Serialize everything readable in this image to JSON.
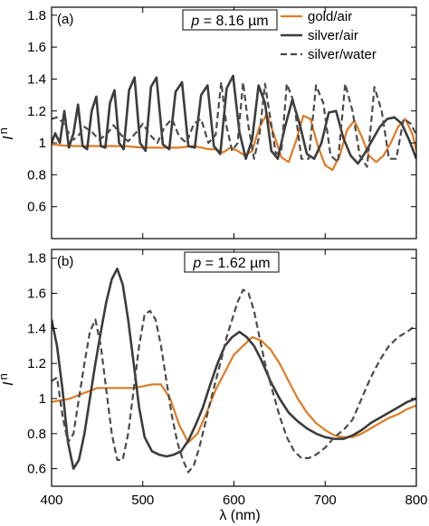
{
  "figure": {
    "xlabel": "λ (nm)",
    "ylabel_main": "I",
    "ylabel_sub": "n"
  },
  "chart_data": [
    {
      "type": "line",
      "panel_label": "(a)",
      "annotation": {
        "symbol": "p",
        "equals": " = ",
        "value": "8.16 µm"
      },
      "xlim": [
        400,
        800
      ],
      "ylim": [
        0.4,
        1.85
      ],
      "xticks": [
        400,
        500,
        600,
        700,
        800
      ],
      "yticks": [
        0.6,
        0.8,
        1.0,
        1.2,
        1.4,
        1.6,
        1.8
      ],
      "yticklabels": [
        "0.6",
        "0.8",
        "1",
        "1.2",
        "1.4",
        "1.6",
        "1.8"
      ],
      "legend_position": "top-right",
      "series": [
        {
          "name": "gold/air",
          "color": "#e07b22",
          "style": "solid",
          "width": 2.2,
          "x": [
            400,
            420,
            440,
            460,
            480,
            500,
            520,
            540,
            555,
            565,
            572,
            580,
            588,
            596,
            604,
            612,
            620,
            628,
            636,
            644,
            652,
            660,
            668,
            676,
            684,
            692,
            700,
            708,
            716,
            724,
            732,
            740,
            748,
            756,
            764,
            772,
            780,
            788,
            796,
            800
          ],
          "y": [
            0.99,
            0.98,
            0.98,
            0.98,
            0.98,
            0.97,
            0.97,
            0.97,
            0.98,
            0.97,
            0.96,
            0.96,
            0.94,
            0.97,
            0.95,
            0.92,
            0.95,
            1.1,
            1.18,
            1.05,
            0.91,
            0.88,
            1.01,
            1.17,
            1.15,
            0.98,
            0.86,
            0.83,
            0.92,
            1.08,
            1.14,
            1.04,
            0.92,
            0.88,
            0.92,
            1.0,
            1.1,
            1.15,
            1.05,
            0.95
          ]
        },
        {
          "name": "silver/air",
          "color": "#3c3c3c",
          "style": "solid",
          "width": 2.6,
          "x": [
            400,
            404,
            409,
            414,
            419,
            424,
            429,
            434,
            439,
            444,
            449,
            454,
            459,
            464,
            469,
            474,
            479,
            485,
            491,
            497,
            503,
            509,
            515,
            522,
            529,
            536,
            543,
            550,
            557,
            564,
            571,
            578,
            585,
            592,
            599,
            606,
            613,
            620,
            627,
            634,
            641,
            648,
            656,
            664,
            672,
            680,
            688,
            696,
            704,
            712,
            720,
            728,
            736,
            744,
            752,
            760,
            768,
            776,
            784,
            792,
            800
          ],
          "y": [
            1.0,
            1.06,
            1.0,
            1.2,
            0.97,
            1.06,
            1.24,
            0.98,
            0.96,
            1.2,
            1.29,
            0.98,
            0.97,
            1.25,
            1.33,
            1.0,
            0.96,
            1.33,
            1.41,
            1.0,
            0.95,
            1.35,
            1.41,
            0.99,
            0.96,
            1.32,
            1.38,
            0.98,
            0.97,
            1.3,
            1.36,
            0.98,
            0.93,
            1.34,
            1.42,
            1.07,
            0.9,
            1.02,
            1.36,
            1.25,
            0.95,
            0.9,
            1.1,
            1.27,
            1.12,
            0.93,
            0.9,
            1.0,
            1.19,
            1.2,
            1.03,
            0.92,
            0.87,
            0.94,
            1.02,
            1.1,
            1.15,
            1.16,
            1.12,
            1.02,
            0.9
          ]
        },
        {
          "name": "silver/water",
          "color": "#4b4b4b",
          "style": "dashed",
          "width": 2.2,
          "x": [
            400,
            406,
            412,
            418,
            424,
            430,
            436,
            444,
            452,
            460,
            468,
            476,
            484,
            492,
            500,
            508,
            516,
            524,
            532,
            540,
            548,
            556,
            564,
            572,
            580,
            586,
            592,
            598,
            604,
            610,
            616,
            622,
            628,
            634,
            640,
            646,
            652,
            658,
            666,
            674,
            682,
            690,
            698,
            706,
            714,
            722,
            730,
            738,
            746,
            754,
            762,
            770,
            778,
            786,
            794,
            800
          ],
          "y": [
            1.15,
            1.16,
            1.13,
            1.07,
            1.02,
            1.05,
            1.1,
            1.07,
            1.02,
            1.05,
            1.11,
            1.05,
            1.01,
            1.06,
            1.12,
            1.05,
            1.0,
            1.1,
            1.15,
            1.04,
            1.0,
            1.12,
            1.15,
            1.0,
            1.05,
            1.38,
            1.1,
            0.95,
            1.0,
            1.38,
            1.1,
            0.9,
            1.05,
            1.37,
            1.15,
            0.93,
            0.95,
            1.37,
            1.25,
            0.9,
            0.9,
            1.36,
            1.25,
            0.92,
            0.88,
            1.37,
            1.2,
            0.92,
            0.85,
            1.35,
            1.2,
            0.9,
            0.9,
            1.15,
            1.12,
            1.05
          ]
        }
      ]
    },
    {
      "type": "line",
      "panel_label": "(b)",
      "annotation": {
        "symbol": "p",
        "equals": " = ",
        "value": "1.62 µm"
      },
      "xlim": [
        400,
        800
      ],
      "ylim": [
        0.5,
        1.85
      ],
      "xticks": [
        400,
        500,
        600,
        700,
        800
      ],
      "xticklabels": [
        "400",
        "500",
        "600",
        "700",
        "800"
      ],
      "yticks": [
        0.6,
        0.8,
        1.0,
        1.2,
        1.4,
        1.6,
        1.8
      ],
      "yticklabels": [
        "0.6",
        "0.8",
        "1",
        "1.2",
        "1.4",
        "1.6",
        "1.8"
      ],
      "series": [
        {
          "name": "gold/air",
          "color": "#e07b22",
          "style": "solid",
          "width": 2.2,
          "x": [
            400,
            410,
            420,
            430,
            440,
            450,
            460,
            470,
            480,
            490,
            500,
            510,
            520,
            530,
            540,
            550,
            560,
            570,
            580,
            590,
            600,
            610,
            620,
            630,
            640,
            650,
            660,
            670,
            680,
            690,
            700,
            710,
            720,
            730,
            740,
            750,
            760,
            770,
            780,
            790,
            800
          ],
          "y": [
            0.98,
            0.99,
            1.0,
            1.02,
            1.04,
            1.06,
            1.06,
            1.06,
            1.06,
            1.06,
            1.07,
            1.08,
            1.08,
            1.0,
            0.85,
            0.75,
            0.8,
            0.92,
            1.05,
            1.15,
            1.25,
            1.3,
            1.35,
            1.33,
            1.28,
            1.2,
            1.1,
            1.0,
            0.92,
            0.86,
            0.82,
            0.79,
            0.78,
            0.78,
            0.8,
            0.83,
            0.86,
            0.89,
            0.91,
            0.94,
            0.96
          ]
        },
        {
          "name": "silver/air",
          "color": "#3c3c3c",
          "style": "solid",
          "width": 2.6,
          "x": [
            400,
            406,
            412,
            418,
            424,
            430,
            436,
            442,
            448,
            454,
            460,
            466,
            472,
            478,
            484,
            490,
            496,
            502,
            510,
            518,
            526,
            534,
            542,
            550,
            558,
            566,
            574,
            582,
            590,
            598,
            606,
            614,
            622,
            630,
            640,
            650,
            660,
            670,
            680,
            690,
            700,
            710,
            720,
            730,
            740,
            750,
            760,
            770,
            780,
            790,
            800
          ],
          "y": [
            1.45,
            1.3,
            1.05,
            0.75,
            0.6,
            0.65,
            0.8,
            1.0,
            1.2,
            1.38,
            1.55,
            1.68,
            1.74,
            1.65,
            1.45,
            1.2,
            0.95,
            0.78,
            0.7,
            0.68,
            0.67,
            0.68,
            0.7,
            0.76,
            0.85,
            0.95,
            1.08,
            1.2,
            1.3,
            1.35,
            1.38,
            1.35,
            1.3,
            1.22,
            1.1,
            1.0,
            0.92,
            0.87,
            0.83,
            0.8,
            0.78,
            0.77,
            0.77,
            0.79,
            0.82,
            0.86,
            0.89,
            0.92,
            0.95,
            0.98,
            1.0
          ]
        },
        {
          "name": "silver/water",
          "color": "#4b4b4b",
          "style": "dashed",
          "width": 2.2,
          "x": [
            400,
            406,
            412,
            418,
            424,
            430,
            436,
            442,
            448,
            454,
            460,
            466,
            472,
            478,
            484,
            490,
            496,
            502,
            508,
            514,
            520,
            526,
            532,
            538,
            544,
            550,
            556,
            562,
            568,
            574,
            580,
            586,
            592,
            598,
            604,
            610,
            616,
            622,
            628,
            634,
            642,
            650,
            658,
            666,
            674,
            682,
            690,
            700,
            710,
            720,
            730,
            740,
            750,
            760,
            770,
            780,
            790,
            800
          ],
          "y": [
            1.1,
            1.12,
            0.9,
            0.75,
            0.8,
            1.0,
            1.2,
            1.38,
            1.45,
            1.3,
            1.05,
            0.8,
            0.65,
            0.65,
            0.8,
            1.05,
            1.3,
            1.48,
            1.5,
            1.45,
            1.3,
            1.1,
            0.9,
            0.75,
            0.65,
            0.58,
            0.62,
            0.72,
            0.85,
            0.98,
            1.1,
            1.22,
            1.35,
            1.45,
            1.55,
            1.62,
            1.6,
            1.5,
            1.35,
            1.2,
            1.05,
            0.9,
            0.78,
            0.7,
            0.66,
            0.66,
            0.68,
            0.72,
            0.78,
            0.82,
            0.88,
            1.0,
            1.12,
            1.22,
            1.3,
            1.35,
            1.38,
            1.42
          ]
        }
      ]
    }
  ]
}
